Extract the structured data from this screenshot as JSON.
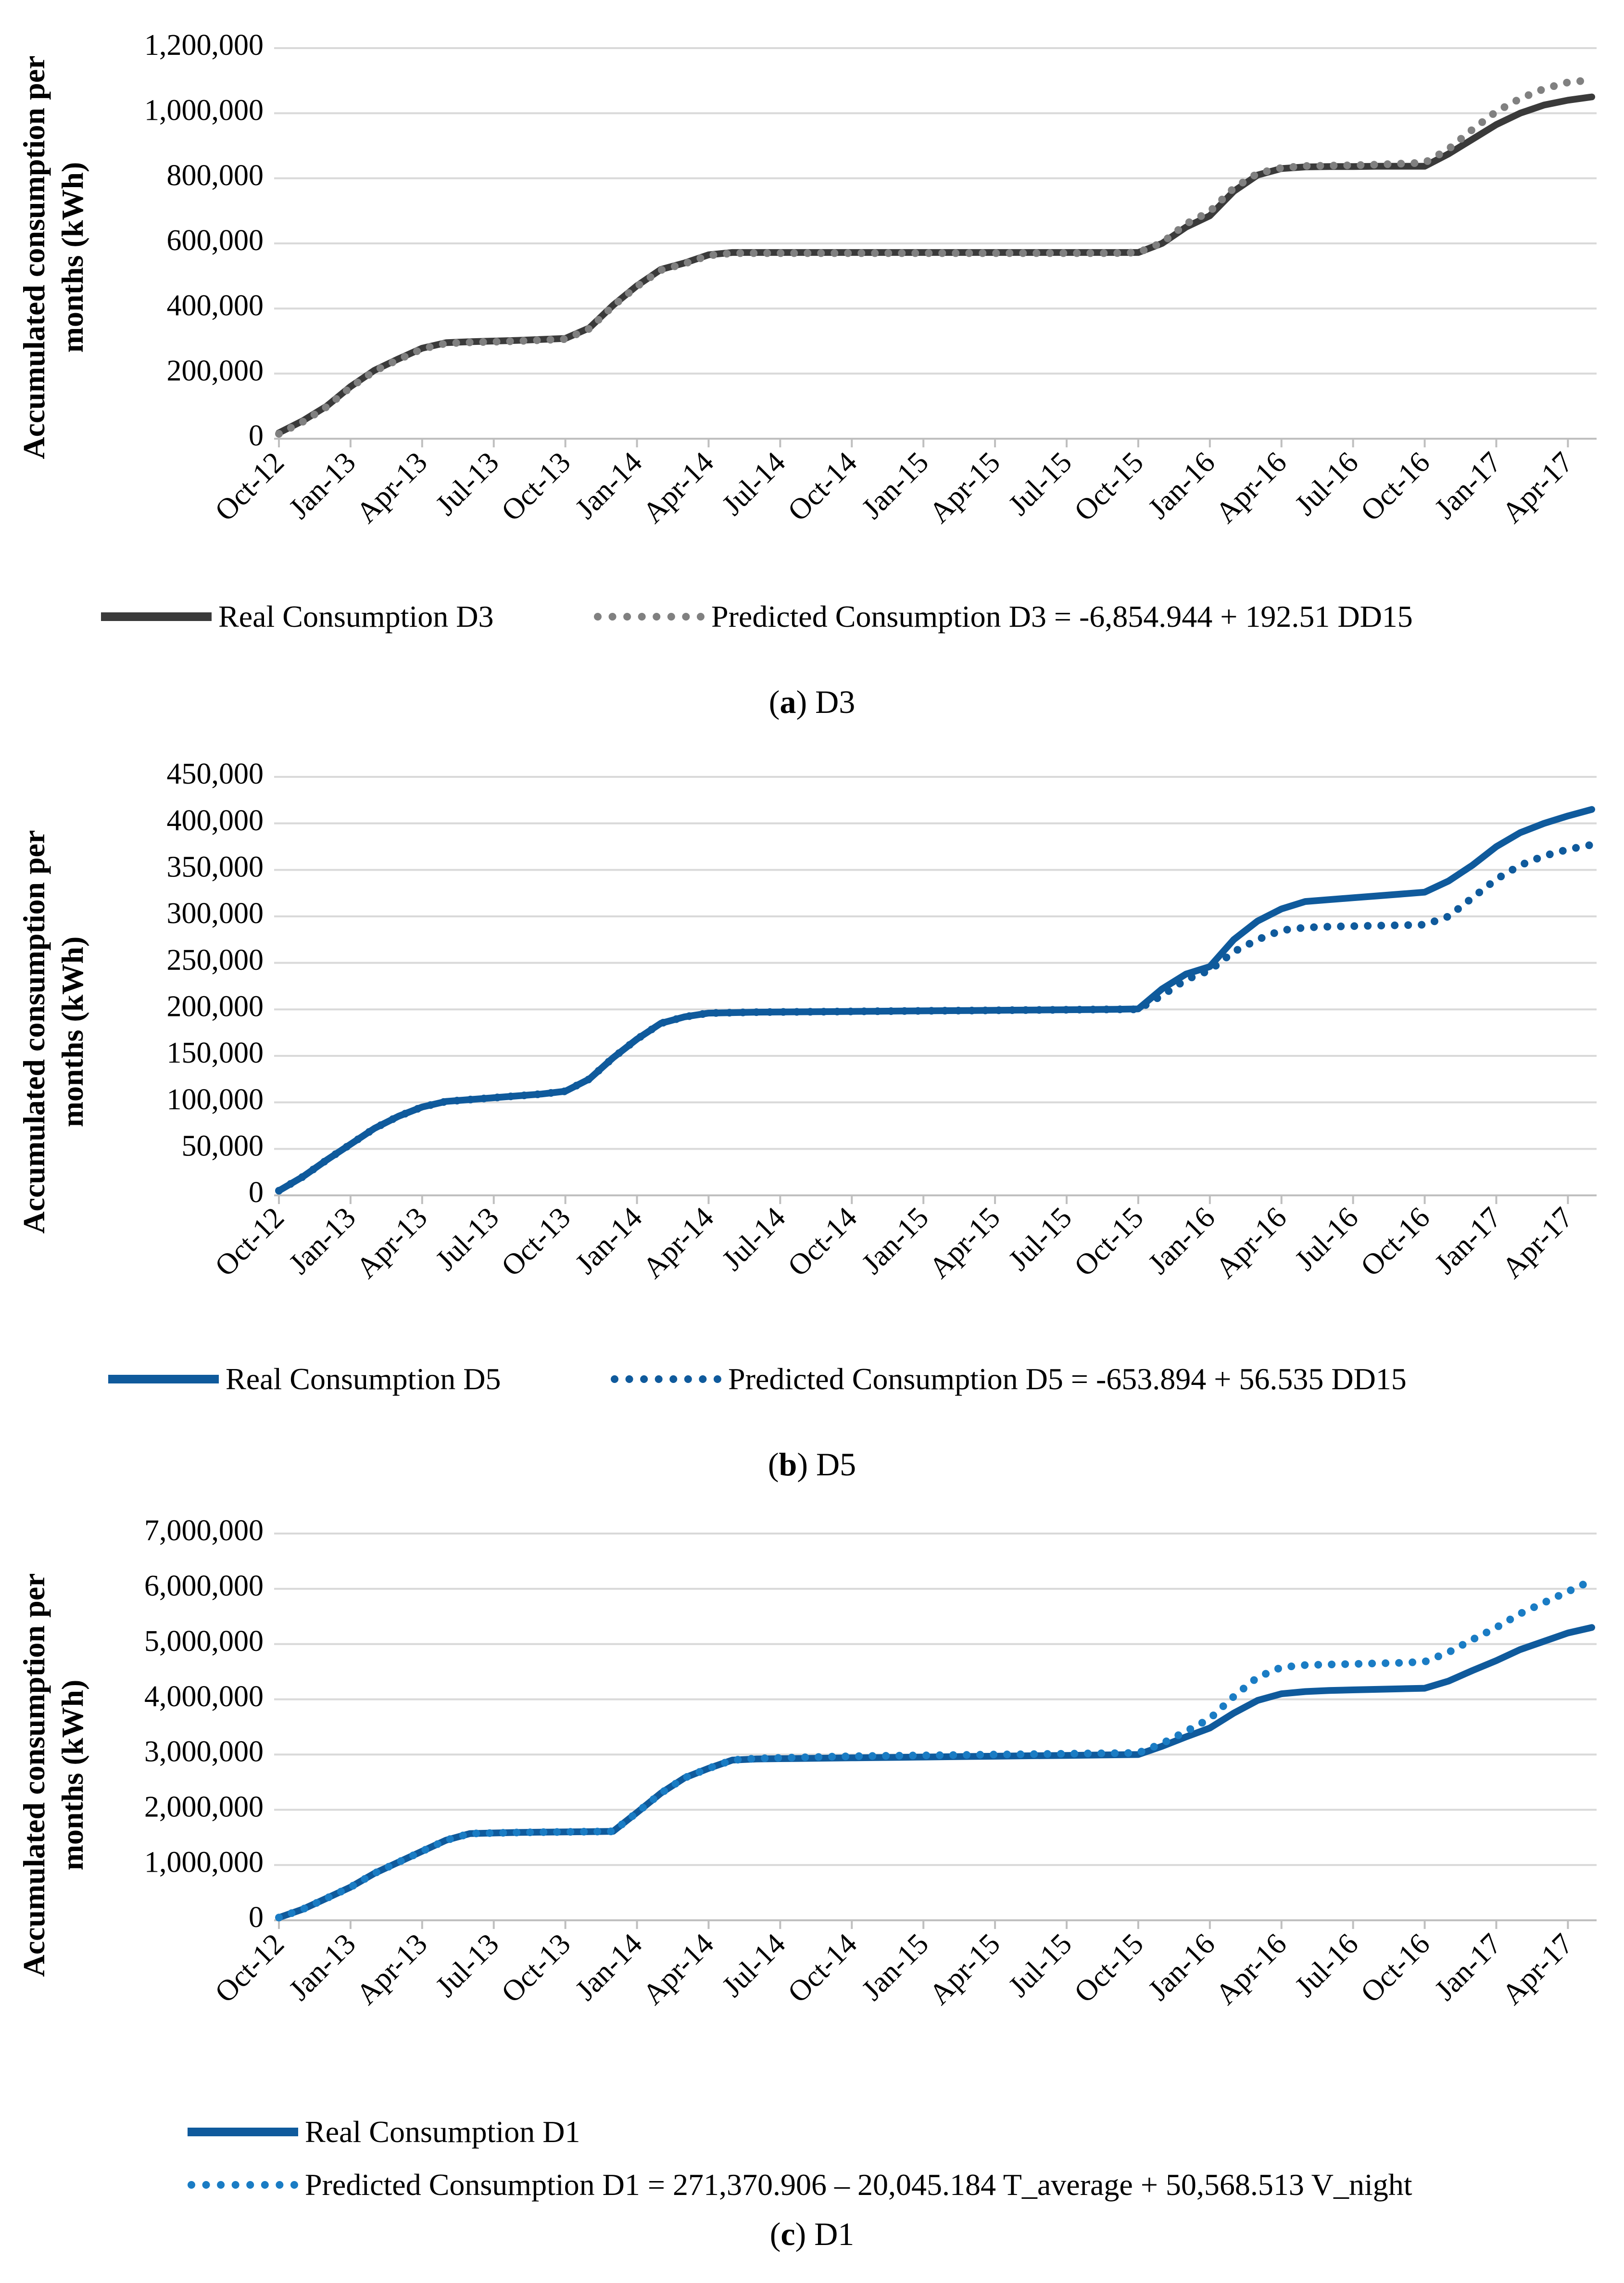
{
  "chart_data": [
    {
      "type": "line",
      "id": "D3",
      "ylabel": "Accumulated consumption per months (kWh)",
      "ylabel_lines": [
        "Accumulated consumption per",
        "months (kWh)"
      ],
      "ylim": [
        0,
        1200000
      ],
      "yticks": [
        0,
        200000,
        400000,
        600000,
        800000,
        1000000,
        1200000
      ],
      "ytick_labels": [
        "0",
        "200,000",
        "400,000",
        "600,000",
        "800,000",
        "1,000,000",
        "1,200,000"
      ],
      "x_tick_labels": [
        "Oct-12",
        "Jan-13",
        "Apr-13",
        "Jul-13",
        "Oct-13",
        "Jan-14",
        "Apr-14",
        "Jul-14",
        "Oct-14",
        "Jan-15",
        "Apr-15",
        "Jul-15",
        "Oct-15",
        "Jan-16",
        "Apr-16",
        "Jul-16",
        "Oct-16",
        "Jan-17",
        "Apr-17"
      ],
      "series": [
        {
          "name": "Real Consumption D3",
          "color": "#3a3a3a",
          "style": "solid",
          "values": [
            18000,
            55000,
            100000,
            160000,
            210000,
            245000,
            278000,
            295000,
            298000,
            300000,
            302000,
            305000,
            308000,
            340000,
            410000,
            470000,
            520000,
            540000,
            565000,
            572000,
            572000,
            572000,
            572000,
            572000,
            572000,
            572000,
            572000,
            572000,
            572000,
            572000,
            572000,
            572000,
            572000,
            572000,
            572000,
            572000,
            572000,
            600000,
            650000,
            685000,
            760000,
            810000,
            830000,
            835000,
            836000,
            836000,
            837000,
            837000,
            837000,
            875000,
            920000,
            965000,
            1000000,
            1025000,
            1040000,
            1050000
          ]
        },
        {
          "name": "Predicted Consumption D3 = -6,854.944 + 192.51 DD15",
          "color": "#808080",
          "style": "dotted",
          "values": [
            15000,
            52000,
            98000,
            158000,
            208000,
            243000,
            276000,
            293000,
            296000,
            298000,
            300000,
            303000,
            306000,
            338000,
            408000,
            468000,
            518000,
            538000,
            563000,
            570000,
            570000,
            570000,
            570000,
            570000,
            570000,
            570000,
            570000,
            570000,
            570000,
            570000,
            570000,
            570000,
            570000,
            570000,
            570000,
            570000,
            572000,
            602000,
            660000,
            698000,
            770000,
            815000,
            832000,
            838000,
            839000,
            840000,
            842000,
            845000,
            848000,
            890000,
            950000,
            1005000,
            1045000,
            1075000,
            1095000,
            1102000
          ]
        }
      ],
      "caption_letter": "a",
      "caption_text": "D3"
    },
    {
      "type": "line",
      "id": "D5",
      "ylabel": "Accumulated consumption per months (kWh)",
      "ylabel_lines": [
        "Accumulated consumption per",
        "months (kWh)"
      ],
      "ylim": [
        0,
        450000
      ],
      "yticks": [
        0,
        50000,
        100000,
        150000,
        200000,
        250000,
        300000,
        350000,
        400000,
        450000
      ],
      "ytick_labels": [
        "0",
        "50,000",
        "100,000",
        "150,000",
        "200,000",
        "250,000",
        "300,000",
        "350,000",
        "400,000",
        "450,000"
      ],
      "x_tick_labels": [
        "Oct-12",
        "Jan-13",
        "Apr-13",
        "Jul-13",
        "Oct-13",
        "Jan-14",
        "Apr-14",
        "Jul-14",
        "Oct-14",
        "Jan-15",
        "Apr-15",
        "Jul-15",
        "Oct-15",
        "Jan-16",
        "Apr-16",
        "Jul-16",
        "Oct-16",
        "Jan-17",
        "Apr-17"
      ],
      "series": [
        {
          "name": "Real Consumption D5",
          "color": "#0f5a9c",
          "style": "solid",
          "values": [
            5000,
            20000,
            38000,
            55000,
            72000,
            85000,
            95000,
            101000,
            103000,
            105000,
            107000,
            109000,
            112000,
            125000,
            148000,
            168000,
            185000,
            192000,
            196000,
            196500,
            197000,
            197200,
            197400,
            197600,
            197800,
            198000,
            198200,
            198400,
            198600,
            198800,
            199000,
            199200,
            199400,
            199600,
            199800,
            200000,
            200500,
            222000,
            238000,
            246000,
            275000,
            295000,
            308000,
            316000,
            318000,
            320000,
            322000,
            324000,
            326000,
            338000,
            355000,
            375000,
            390000,
            400000,
            408000,
            415000
          ]
        },
        {
          "name": "Predicted Consumption D5 = -653.894 + 56.535 DD15",
          "color": "#0f5a9c",
          "style": "dotted",
          "values": [
            5000,
            20000,
            38000,
            55000,
            72000,
            85000,
            95000,
            101000,
            103000,
            105000,
            107000,
            109000,
            112000,
            125000,
            148000,
            168000,
            185000,
            192000,
            196000,
            196500,
            197000,
            197200,
            197400,
            197600,
            197800,
            198000,
            198200,
            198400,
            198600,
            198800,
            199000,
            199200,
            199400,
            199600,
            199800,
            200000,
            200000,
            215000,
            232000,
            242000,
            262000,
            275000,
            285000,
            288000,
            289000,
            289500,
            290000,
            290500,
            291000,
            300000,
            320000,
            340000,
            355000,
            365000,
            372000,
            377000
          ]
        }
      ],
      "caption_letter": "b",
      "caption_text": "D5"
    },
    {
      "type": "line",
      "id": "D1",
      "ylabel": "Accumulated consumption per months (kWh)",
      "ylabel_lines": [
        "Accumulated consumption per",
        "months (kWh)"
      ],
      "ylim": [
        0,
        7000000
      ],
      "yticks": [
        0,
        1000000,
        2000000,
        3000000,
        4000000,
        5000000,
        6000000,
        7000000
      ],
      "ytick_labels": [
        "0",
        "1,000,000",
        "2,000,000",
        "3,000,000",
        "4,000,000",
        "5,000,000",
        "6,000,000",
        "7,000,000"
      ],
      "x_tick_labels": [
        "Oct-12",
        "Jan-13",
        "Apr-13",
        "Jul-13",
        "Oct-13",
        "Jan-14",
        "Apr-14",
        "Jul-14",
        "Oct-14",
        "Jan-15",
        "Apr-15",
        "Jul-15",
        "Oct-15",
        "Jan-16",
        "Apr-16",
        "Jul-16",
        "Oct-16",
        "Jan-17",
        "Apr-17"
      ],
      "series": [
        {
          "name": "Real Consumption D1",
          "color": "#0f5a9c",
          "style": "solid",
          "values": [
            50000,
            200000,
            400000,
            600000,
            850000,
            1050000,
            1250000,
            1450000,
            1570000,
            1580000,
            1590000,
            1595000,
            1600000,
            1605000,
            1610000,
            1950000,
            2300000,
            2580000,
            2750000,
            2900000,
            2920000,
            2925000,
            2930000,
            2935000,
            2940000,
            2945000,
            2950000,
            2955000,
            2960000,
            2965000,
            2970000,
            2975000,
            2980000,
            2985000,
            2990000,
            2995000,
            3000000,
            3150000,
            3320000,
            3480000,
            3750000,
            3980000,
            4100000,
            4140000,
            4160000,
            4170000,
            4180000,
            4190000,
            4200000,
            4330000,
            4520000,
            4700000,
            4900000,
            5050000,
            5200000,
            5300000
          ]
        },
        {
          "name": "Predicted Consumption D1 = 271,370.906 – 20,045.184 T_average + 50,568.513 V_night",
          "color": "#1a7cc4",
          "style": "dotted",
          "values": [
            50000,
            200000,
            400000,
            600000,
            850000,
            1050000,
            1250000,
            1450000,
            1570000,
            1580000,
            1590000,
            1595000,
            1600000,
            1605000,
            1610000,
            1950000,
            2300000,
            2580000,
            2750000,
            2900000,
            2930000,
            2940000,
            2950000,
            2960000,
            2970000,
            2975000,
            2980000,
            2985000,
            2990000,
            2995000,
            3000000,
            3005000,
            3010000,
            3015000,
            3020000,
            3025000,
            3030000,
            3200000,
            3420000,
            3650000,
            4050000,
            4400000,
            4580000,
            4620000,
            4630000,
            4640000,
            4650000,
            4660000,
            4680000,
            4850000,
            5080000,
            5300000,
            5550000,
            5750000,
            5950000,
            6150000
          ]
        }
      ],
      "caption_letter": "c",
      "caption_text": "D1"
    }
  ]
}
